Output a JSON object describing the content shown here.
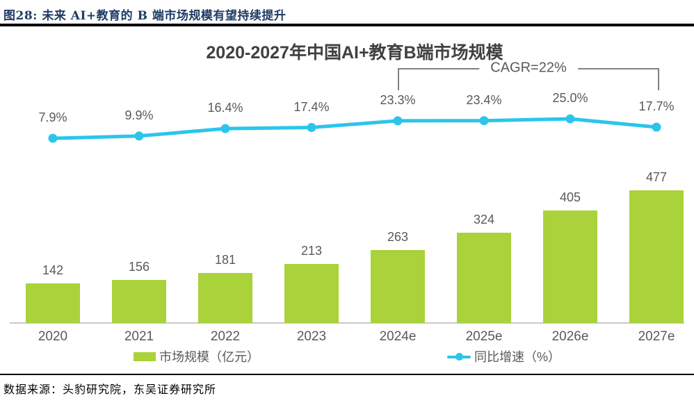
{
  "header": {
    "title": "图28:  未来 AI+教育的 B 端市场规模有望持续提升"
  },
  "chart_data": {
    "type": "bar",
    "subtype": "bar+line-combo",
    "title": "2020-2027年中国AI+教育B端市场规模",
    "categories": [
      "2020",
      "2021",
      "2022",
      "2023",
      "2024e",
      "2025e",
      "2026e",
      "2027e"
    ],
    "series": [
      {
        "name": "市场规模（亿元）",
        "type": "bar",
        "values": [
          142,
          156,
          181,
          213,
          263,
          324,
          405,
          477
        ],
        "color": "#AAD23A"
      },
      {
        "name": "同比增速（%）",
        "type": "line",
        "values": [
          7.9,
          9.9,
          16.4,
          17.4,
          23.3,
          23.4,
          25.0,
          17.7
        ],
        "labels": [
          "7.9%",
          "9.9%",
          "16.4%",
          "17.4%",
          "23.3%",
          "23.4%",
          "25.0%",
          "17.7%"
        ],
        "color": "#2BC5EC"
      }
    ],
    "annotation": {
      "text": "CAGR=22%",
      "from_category": "2024e",
      "to_category": "2027e"
    },
    "xlabel": "",
    "ylabel": "",
    "ylim": [
      0,
      500
    ],
    "grid": false,
    "legend_position": "bottom"
  },
  "source": {
    "text": "数据来源：头豹研究院，东吴证券研究所"
  },
  "colors": {
    "header_text": "#1F3B66",
    "title_text": "#404040",
    "label_text": "#595959",
    "bar_green": "#AAD23A",
    "line_cyan": "#2BC5EC",
    "bracket_gray": "#808080",
    "axis_gray": "#C9C9C9",
    "rule_black": "#000000"
  }
}
